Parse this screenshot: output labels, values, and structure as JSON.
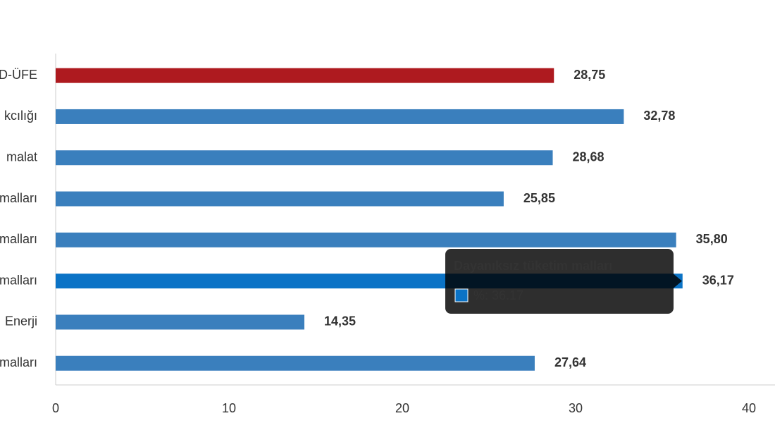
{
  "chart_data": {
    "type": "bar",
    "orientation": "horizontal",
    "categories": [
      "D-ÜFE",
      "kcılığı",
      "malat",
      "malları",
      "malları",
      "malları",
      "Enerji",
      "malları"
    ],
    "values": [
      28.75,
      32.78,
      28.68,
      25.85,
      35.8,
      36.17,
      14.35,
      27.64
    ],
    "value_labels": [
      "28,75",
      "32,78",
      "28,68",
      "25,85",
      "35,80",
      "36,17",
      "14,35",
      "27,64"
    ],
    "colors": [
      "#ae1a1f",
      "#3a7fbd",
      "#3a7fbd",
      "#3a7fbd",
      "#3a7fbd",
      "#0b73c6",
      "#3a7fbd",
      "#3a7fbd"
    ],
    "xlim": [
      0,
      40
    ],
    "xticks": [
      0,
      10,
      20,
      30,
      40
    ],
    "tooltip": {
      "index": 5,
      "title": "Dayanıksız tüketim malları",
      "text": "%: 36.17"
    }
  }
}
